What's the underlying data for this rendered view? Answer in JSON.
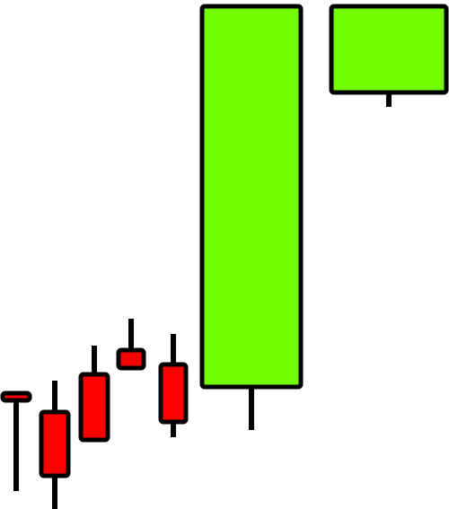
{
  "chart_data": {
    "type": "candlestick",
    "title": "",
    "xlabel": "",
    "ylabel": "",
    "axes_visible": false,
    "grid": false,
    "ylim": [
      0,
      567
    ],
    "colors": {
      "up": "#73ff00",
      "down": "#ff0000",
      "outline": "#000000",
      "background": "#ffffff"
    },
    "candles": [
      {
        "open": 129,
        "close": 121,
        "high": 129,
        "low": 20
      },
      {
        "open": 108,
        "close": 37,
        "high": 143,
        "low": 0
      },
      {
        "open": 150,
        "close": 77,
        "high": 182,
        "low": 77
      },
      {
        "open": 177,
        "close": 157,
        "high": 212,
        "low": 157
      },
      {
        "open": 161,
        "close": 97,
        "high": 195,
        "low": 80
      },
      {
        "open": 136,
        "close": 560,
        "high": 560,
        "low": 88
      },
      {
        "open": 464,
        "close": 560,
        "high": 560,
        "low": 448
      }
    ]
  }
}
